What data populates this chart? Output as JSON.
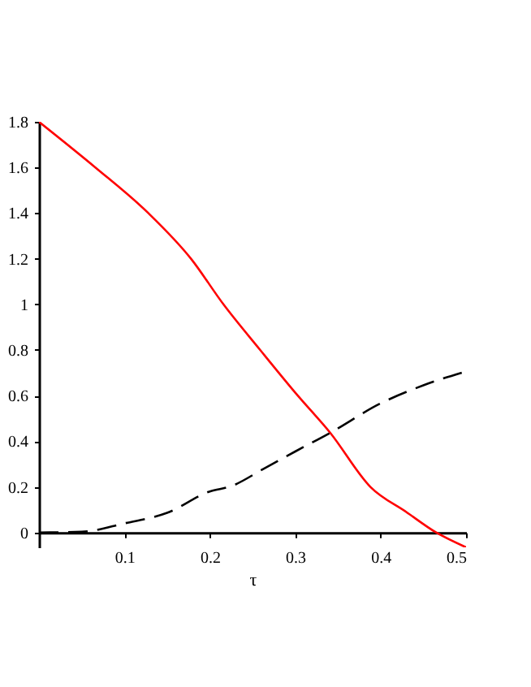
{
  "chart_data": {
    "type": "line",
    "xlabel": "τ",
    "xlim": [
      0,
      0.5
    ],
    "ylim": [
      -0.065,
      1.8
    ],
    "xticks": [
      0.1,
      0.2,
      0.3,
      0.4,
      0.5
    ],
    "yticks": [
      0,
      0.2,
      0.4,
      0.6,
      0.8,
      1,
      1.2,
      1.4,
      1.6,
      1.8
    ],
    "grid": false,
    "legend": false,
    "marker": "none",
    "series": [
      {
        "color": "#ff0000",
        "line_style": "solid",
        "x": [
          0,
          0.066,
          0.128,
          0.178,
          0.216,
          0.259,
          0.303,
          0.341,
          0.388,
          0.43,
          0.465,
          0.5
        ],
        "values": [
          1.8,
          1.6,
          1.4,
          1.2,
          1.0,
          0.8,
          0.6,
          0.437,
          0.2,
          0.09,
          0,
          -0.065
        ]
      },
      {
        "color": "#000000",
        "line_style": "dashed",
        "x": [
          0,
          0.05,
          0.1,
          0.15,
          0.2,
          0.225,
          0.2625,
          0.3,
          0.341,
          0.4,
          0.45,
          0.5
        ],
        "values": [
          0,
          0.003,
          0.04,
          0.086,
          0.18,
          0.203,
          0.278,
          0.355,
          0.437,
          0.566,
          0.645,
          0.706
        ]
      }
    ]
  }
}
